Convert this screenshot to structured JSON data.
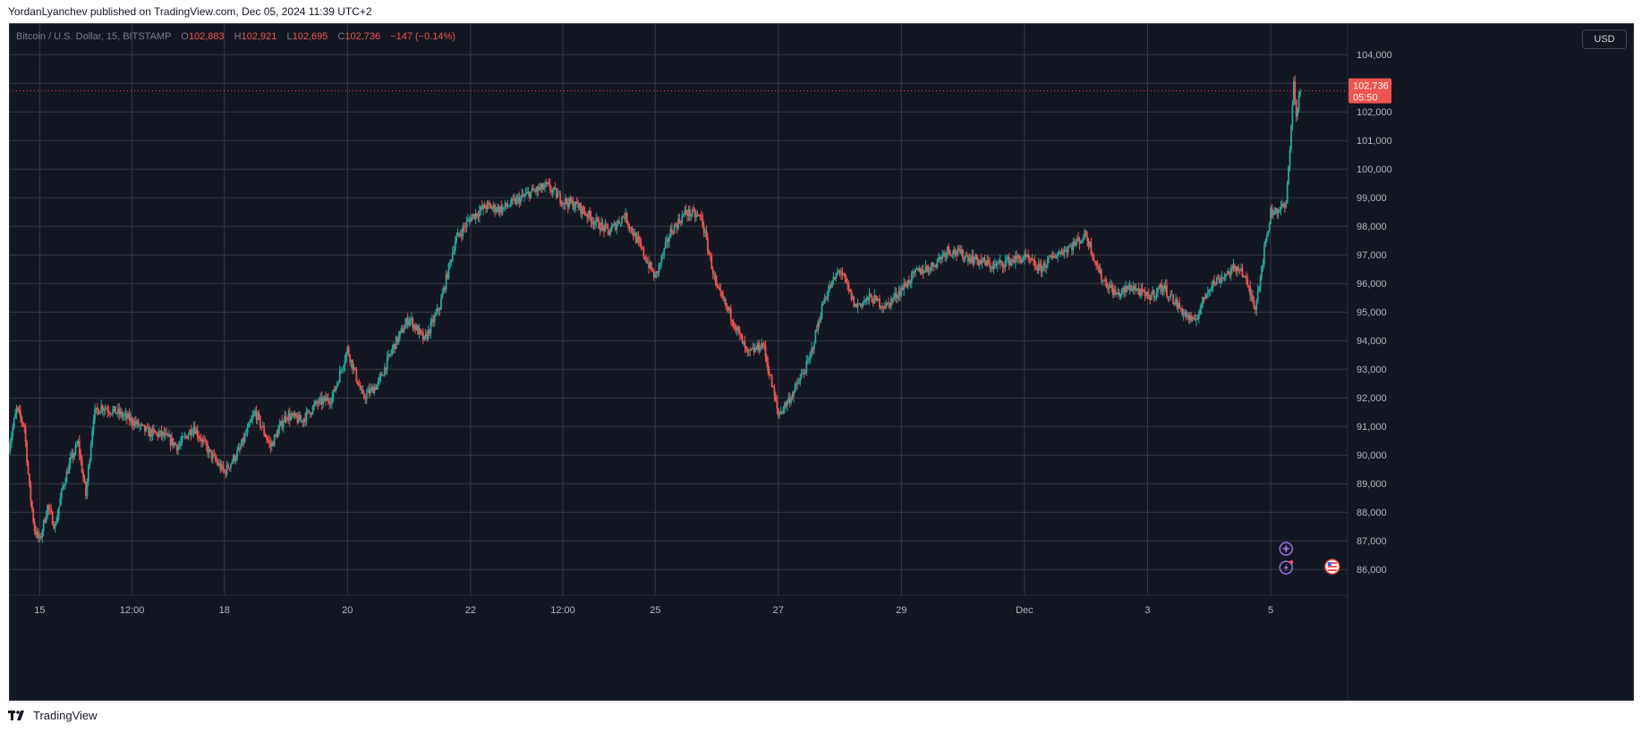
{
  "header": {
    "published_by": "YordanLyanchev published on TradingView.com, Dec 05, 2024 11:39 UTC+2"
  },
  "legend": {
    "symbol": "Bitcoin / U.S. Dollar, 15, BITSTAMP",
    "open_label": "O",
    "open_value": "102,883",
    "high_label": "H",
    "high_value": "102,921",
    "low_label": "L",
    "low_value": "102,695",
    "close_label": "C",
    "close_value": "102,736",
    "change": "−147 (−0.14%)"
  },
  "toolbar": {
    "currency": "USD"
  },
  "price_label": {
    "price": "102,736",
    "countdown": "05:50"
  },
  "footer": {
    "brand": "TradingView"
  },
  "colors": {
    "up": "#26a69a",
    "down": "#ef5350",
    "background": "#131722",
    "grid": "#363a45",
    "axis_text": "#b2b5be"
  },
  "icons": [
    "spark-icon",
    "lightning-icon",
    "us-flag-icon",
    "tradingview-logo-icon"
  ],
  "chart_data": {
    "type": "candlestick",
    "title": "Bitcoin / U.S. Dollar, 15, BITSTAMP",
    "interval": "15",
    "grid": true,
    "y_ticks": [
      86000,
      87000,
      88000,
      89000,
      90000,
      91000,
      92000,
      93000,
      94000,
      95000,
      96000,
      97000,
      98000,
      99000,
      100000,
      101000,
      102000,
      103000,
      104000
    ],
    "ylim": [
      85100,
      105100
    ],
    "xlim": [
      "2024-11-14 12:00",
      "2024-12-06 06:00"
    ],
    "x_ticks": [
      {
        "time": "2024-11-15 00:00",
        "label": "15"
      },
      {
        "time": "2024-11-16 12:00",
        "label": "12:00"
      },
      {
        "time": "2024-11-18 00:00",
        "label": "18"
      },
      {
        "time": "2024-11-20 00:00",
        "label": "20"
      },
      {
        "time": "2024-11-22 00:00",
        "label": "22"
      },
      {
        "time": "2024-11-23 12:00",
        "label": "12:00"
      },
      {
        "time": "2024-11-25 00:00",
        "label": "25"
      },
      {
        "time": "2024-11-27 00:00",
        "label": "27"
      },
      {
        "time": "2024-11-29 00:00",
        "label": "29"
      },
      {
        "time": "2024-12-01 00:00",
        "label": "Dec"
      },
      {
        "time": "2024-12-03 00:00",
        "label": "3"
      },
      {
        "time": "2024-12-05 00:00",
        "label": "5"
      }
    ],
    "last_price": 102736,
    "path": [
      [
        "2024-11-14 12:00",
        90300
      ],
      [
        "2024-11-14 15:00",
        91600
      ],
      [
        "2024-11-14 18:00",
        91000
      ],
      [
        "2024-11-14 20:00",
        88800
      ],
      [
        "2024-11-14 22:00",
        87400
      ],
      [
        "2024-11-15 00:00",
        87000
      ],
      [
        "2024-11-15 03:00",
        88200
      ],
      [
        "2024-11-15 06:00",
        87500
      ],
      [
        "2024-11-15 09:00",
        88900
      ],
      [
        "2024-11-15 12:00",
        89800
      ],
      [
        "2024-11-15 15:00",
        90400
      ],
      [
        "2024-11-15 18:00",
        88600
      ],
      [
        "2024-11-15 21:00",
        91400
      ],
      [
        "2024-11-16 00:00",
        91700
      ],
      [
        "2024-11-16 06:00",
        91500
      ],
      [
        "2024-11-16 12:00",
        91200
      ],
      [
        "2024-11-16 18:00",
        90800
      ],
      [
        "2024-11-17 00:00",
        90700
      ],
      [
        "2024-11-17 06:00",
        90300
      ],
      [
        "2024-11-17 12:00",
        91000
      ],
      [
        "2024-11-17 18:00",
        90100
      ],
      [
        "2024-11-18 00:00",
        89400
      ],
      [
        "2024-11-18 06:00",
        90200
      ],
      [
        "2024-11-18 12:00",
        91500
      ],
      [
        "2024-11-18 18:00",
        90300
      ],
      [
        "2024-11-19 00:00",
        91400
      ],
      [
        "2024-11-19 06:00",
        91200
      ],
      [
        "2024-11-19 12:00",
        91800
      ],
      [
        "2024-11-19 18:00",
        92000
      ],
      [
        "2024-11-20 00:00",
        93700
      ],
      [
        "2024-11-20 06:00",
        92000
      ],
      [
        "2024-11-20 12:00",
        92500
      ],
      [
        "2024-11-20 18:00",
        93800
      ],
      [
        "2024-11-21 00:00",
        94800
      ],
      [
        "2024-11-21 06:00",
        94000
      ],
      [
        "2024-11-21 12:00",
        95200
      ],
      [
        "2024-11-21 18:00",
        97500
      ],
      [
        "2024-11-22 00:00",
        98300
      ],
      [
        "2024-11-22 06:00",
        98700
      ],
      [
        "2024-11-22 12:00",
        98600
      ],
      [
        "2024-11-22 18:00",
        98900
      ],
      [
        "2024-11-23 00:00",
        99200
      ],
      [
        "2024-11-23 06:00",
        99400
      ],
      [
        "2024-11-23 12:00",
        98900
      ],
      [
        "2024-11-23 18:00",
        98700
      ],
      [
        "2024-11-24 00:00",
        98200
      ],
      [
        "2024-11-24 06:00",
        97800
      ],
      [
        "2024-11-24 12:00",
        98400
      ],
      [
        "2024-11-24 18:00",
        97300
      ],
      [
        "2024-11-25 00:00",
        96200
      ],
      [
        "2024-11-25 06:00",
        97800
      ],
      [
        "2024-11-25 12:00",
        98500
      ],
      [
        "2024-11-25 18:00",
        98300
      ],
      [
        "2024-11-26 00:00",
        95800
      ],
      [
        "2024-11-26 06:00",
        94800
      ],
      [
        "2024-11-26 12:00",
        93500
      ],
      [
        "2024-11-26 18:00",
        93900
      ],
      [
        "2024-11-27 00:00",
        91400
      ],
      [
        "2024-11-27 06:00",
        92200
      ],
      [
        "2024-11-27 12:00",
        93300
      ],
      [
        "2024-11-27 18:00",
        95500
      ],
      [
        "2024-11-28 00:00",
        96500
      ],
      [
        "2024-11-28 06:00",
        95200
      ],
      [
        "2024-11-28 12:00",
        95500
      ],
      [
        "2024-11-28 18:00",
        95200
      ],
      [
        "2024-11-29 00:00",
        95800
      ],
      [
        "2024-11-29 06:00",
        96400
      ],
      [
        "2024-11-29 12:00",
        96600
      ],
      [
        "2024-11-29 18:00",
        97200
      ],
      [
        "2024-11-30 00:00",
        97000
      ],
      [
        "2024-11-30 06:00",
        96800
      ],
      [
        "2024-11-30 12:00",
        96600
      ],
      [
        "2024-11-30 18:00",
        96800
      ],
      [
        "2024-12-01 00:00",
        96900
      ],
      [
        "2024-12-01 06:00",
        96500
      ],
      [
        "2024-12-01 12:00",
        97000
      ],
      [
        "2024-12-01 18:00",
        97300
      ],
      [
        "2024-12-02 00:00",
        97700
      ],
      [
        "2024-12-02 06:00",
        96200
      ],
      [
        "2024-12-02 12:00",
        95600
      ],
      [
        "2024-12-02 18:00",
        95900
      ],
      [
        "2024-12-03 00:00",
        95500
      ],
      [
        "2024-12-03 06:00",
        95900
      ],
      [
        "2024-12-03 12:00",
        95200
      ],
      [
        "2024-12-03 18:00",
        94600
      ],
      [
        "2024-12-04 00:00",
        95900
      ],
      [
        "2024-12-04 06:00",
        96300
      ],
      [
        "2024-12-04 12:00",
        96600
      ],
      [
        "2024-12-04 18:00",
        95200
      ],
      [
        "2024-12-05 00:00",
        98500
      ],
      [
        "2024-12-05 06:00",
        98700
      ],
      [
        "2024-12-05 09:00",
        103000
      ],
      [
        "2024-12-05 10:00",
        101800
      ],
      [
        "2024-12-05 11:00",
        102500
      ],
      [
        "2024-12-05 11:30",
        102736
      ]
    ]
  }
}
